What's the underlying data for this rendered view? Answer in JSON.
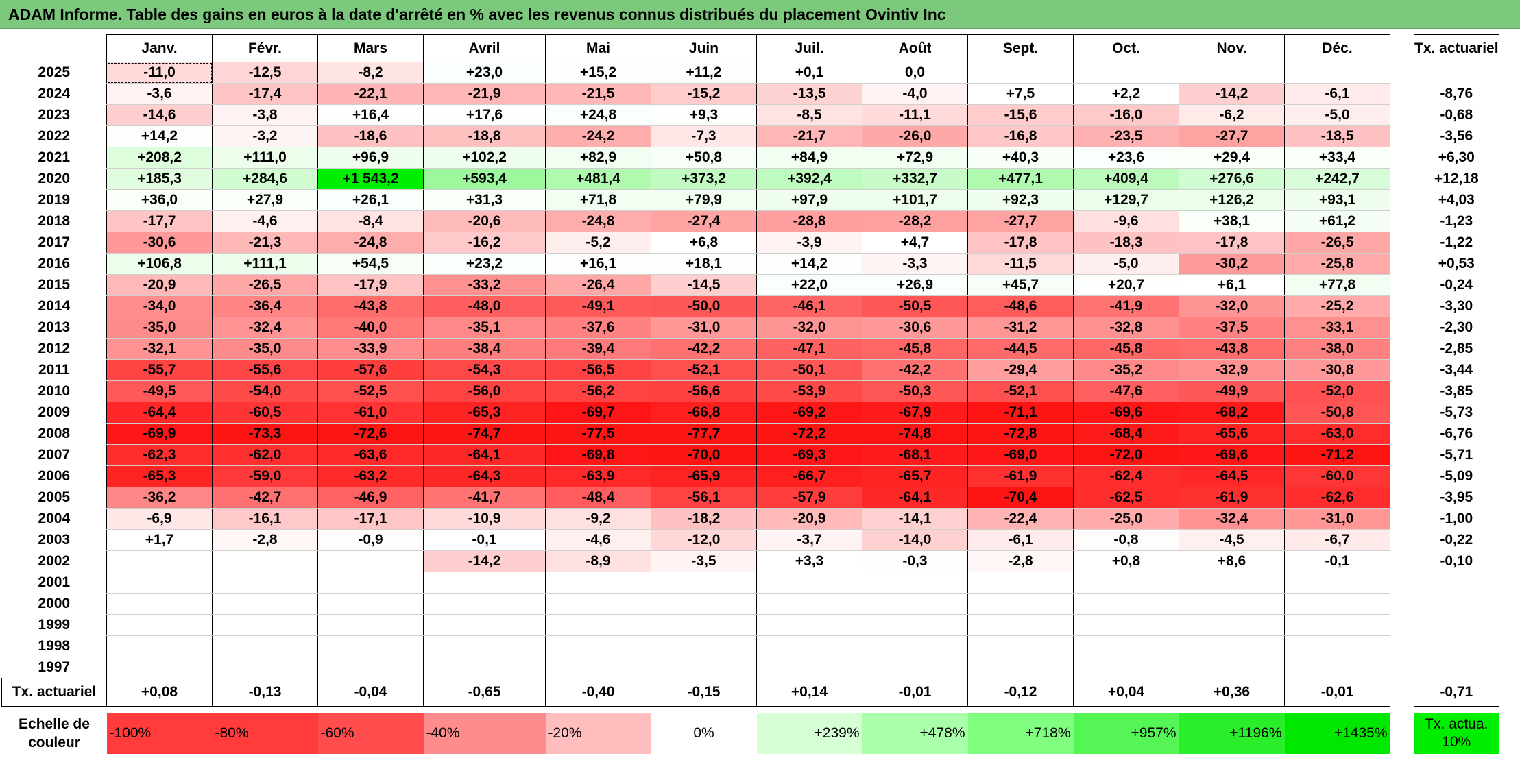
{
  "title": "ADAM Informe. Table des gains en euros à la date d'arrêté en % avec les revenus connus distribués du placement Ovintiv Inc",
  "months": [
    "Janv.",
    "Févr.",
    "Mars",
    "Avril",
    "Mai",
    "Juin",
    "Juil.",
    "Août",
    "Sept.",
    "Oct.",
    "Nov.",
    "Déc."
  ],
  "tx_header": "Tx. actuariel",
  "rows": [
    {
      "year": "2025",
      "values": [
        "-11,0",
        "-12,5",
        "-8,2",
        "+23,0",
        "+15,2",
        "+11,2",
        "+0,1",
        "0,0",
        "",
        "",
        "",
        ""
      ],
      "tx": ""
    },
    {
      "year": "2024",
      "values": [
        "-3,6",
        "-17,4",
        "-22,1",
        "-21,9",
        "-21,5",
        "-15,2",
        "-13,5",
        "-4,0",
        "+7,5",
        "+2,2",
        "-14,2",
        "-6,1"
      ],
      "tx": "-8,76"
    },
    {
      "year": "2023",
      "values": [
        "-14,6",
        "-3,8",
        "+16,4",
        "+17,6",
        "+24,8",
        "+9,3",
        "-8,5",
        "-11,1",
        "-15,6",
        "-16,0",
        "-6,2",
        "-5,0"
      ],
      "tx": "-0,68"
    },
    {
      "year": "2022",
      "values": [
        "+14,2",
        "-3,2",
        "-18,6",
        "-18,8",
        "-24,2",
        "-7,3",
        "-21,7",
        "-26,0",
        "-16,8",
        "-23,5",
        "-27,7",
        "-18,5"
      ],
      "tx": "-3,56"
    },
    {
      "year": "2021",
      "values": [
        "+208,2",
        "+111,0",
        "+96,9",
        "+102,2",
        "+82,9",
        "+50,8",
        "+84,9",
        "+72,9",
        "+40,3",
        "+23,6",
        "+29,4",
        "+33,4"
      ],
      "tx": "+6,30"
    },
    {
      "year": "2020",
      "values": [
        "+185,3",
        "+284,6",
        "+1 543,2",
        "+593,4",
        "+481,4",
        "+373,2",
        "+392,4",
        "+332,7",
        "+477,1",
        "+409,4",
        "+276,6",
        "+242,7"
      ],
      "tx": "+12,18"
    },
    {
      "year": "2019",
      "values": [
        "+36,0",
        "+27,9",
        "+26,1",
        "+31,3",
        "+71,8",
        "+79,9",
        "+97,9",
        "+101,7",
        "+92,3",
        "+129,7",
        "+126,2",
        "+93,1"
      ],
      "tx": "+4,03"
    },
    {
      "year": "2018",
      "values": [
        "-17,7",
        "-4,6",
        "-8,4",
        "-20,6",
        "-24,8",
        "-27,4",
        "-28,8",
        "-28,2",
        "-27,7",
        "-9,6",
        "+38,1",
        "+61,2"
      ],
      "tx": "-1,23"
    },
    {
      "year": "2017",
      "values": [
        "-30,6",
        "-21,3",
        "-24,8",
        "-16,2",
        "-5,2",
        "+6,8",
        "-3,9",
        "+4,7",
        "-17,8",
        "-18,3",
        "-17,8",
        "-26,5"
      ],
      "tx": "-1,22"
    },
    {
      "year": "2016",
      "values": [
        "+106,8",
        "+111,1",
        "+54,5",
        "+23,2",
        "+16,1",
        "+18,1",
        "+14,2",
        "-3,3",
        "-11,5",
        "-5,0",
        "-30,2",
        "-25,8"
      ],
      "tx": "+0,53"
    },
    {
      "year": "2015",
      "values": [
        "-20,9",
        "-26,5",
        "-17,9",
        "-33,2",
        "-26,4",
        "-14,5",
        "+22,0",
        "+26,9",
        "+45,7",
        "+20,7",
        "+6,1",
        "+77,8"
      ],
      "tx": "-0,24"
    },
    {
      "year": "2014",
      "values": [
        "-34,0",
        "-36,4",
        "-43,8",
        "-48,0",
        "-49,1",
        "-50,0",
        "-46,1",
        "-50,5",
        "-48,6",
        "-41,9",
        "-32,0",
        "-25,2"
      ],
      "tx": "-3,30"
    },
    {
      "year": "2013",
      "values": [
        "-35,0",
        "-32,4",
        "-40,0",
        "-35,1",
        "-37,6",
        "-31,0",
        "-32,0",
        "-30,6",
        "-31,2",
        "-32,8",
        "-37,5",
        "-33,1"
      ],
      "tx": "-2,30"
    },
    {
      "year": "2012",
      "values": [
        "-32,1",
        "-35,0",
        "-33,9",
        "-38,4",
        "-39,4",
        "-42,2",
        "-47,1",
        "-45,8",
        "-44,5",
        "-45,8",
        "-43,8",
        "-38,0"
      ],
      "tx": "-2,85"
    },
    {
      "year": "2011",
      "values": [
        "-55,7",
        "-55,6",
        "-57,6",
        "-54,3",
        "-56,5",
        "-52,1",
        "-50,1",
        "-42,2",
        "-29,4",
        "-35,2",
        "-32,9",
        "-30,8"
      ],
      "tx": "-3,44"
    },
    {
      "year": "2010",
      "values": [
        "-49,5",
        "-54,0",
        "-52,5",
        "-56,0",
        "-56,2",
        "-56,6",
        "-53,9",
        "-50,3",
        "-52,1",
        "-47,6",
        "-49,9",
        "-52,0"
      ],
      "tx": "-3,85"
    },
    {
      "year": "2009",
      "values": [
        "-64,4",
        "-60,5",
        "-61,0",
        "-65,3",
        "-69,7",
        "-66,8",
        "-69,2",
        "-67,9",
        "-71,1",
        "-69,6",
        "-68,2",
        "-50,8"
      ],
      "tx": "-5,73"
    },
    {
      "year": "2008",
      "values": [
        "-69,9",
        "-73,3",
        "-72,6",
        "-74,7",
        "-77,5",
        "-77,7",
        "-72,2",
        "-74,8",
        "-72,8",
        "-68,4",
        "-65,6",
        "-63,0"
      ],
      "tx": "-6,76"
    },
    {
      "year": "2007",
      "values": [
        "-62,3",
        "-62,0",
        "-63,6",
        "-64,1",
        "-69,8",
        "-70,0",
        "-69,3",
        "-68,1",
        "-69,0",
        "-72,0",
        "-69,6",
        "-71,2"
      ],
      "tx": "-5,71"
    },
    {
      "year": "2006",
      "values": [
        "-65,3",
        "-59,0",
        "-63,2",
        "-64,3",
        "-63,9",
        "-65,9",
        "-66,7",
        "-65,7",
        "-61,9",
        "-62,4",
        "-64,5",
        "-60,0"
      ],
      "tx": "-5,09"
    },
    {
      "year": "2005",
      "values": [
        "-36,2",
        "-42,7",
        "-46,9",
        "-41,7",
        "-48,4",
        "-56,1",
        "-57,9",
        "-64,1",
        "-70,4",
        "-62,5",
        "-61,9",
        "-62,6"
      ],
      "tx": "-3,95"
    },
    {
      "year": "2004",
      "values": [
        "-6,9",
        "-16,1",
        "-17,1",
        "-10,9",
        "-9,2",
        "-18,2",
        "-20,9",
        "-14,1",
        "-22,4",
        "-25,0",
        "-32,4",
        "-31,0"
      ],
      "tx": "-1,00"
    },
    {
      "year": "2003",
      "values": [
        "+1,7",
        "-2,8",
        "-0,9",
        "-0,1",
        "-4,6",
        "-12,0",
        "-3,7",
        "-14,0",
        "-6,1",
        "-0,8",
        "-4,5",
        "-6,7"
      ],
      "tx": "-0,22"
    },
    {
      "year": "2002",
      "values": [
        "",
        "",
        "",
        "-14,2",
        "-8,9",
        "-3,5",
        "+3,3",
        "-0,3",
        "-2,8",
        "+0,8",
        "+8,6",
        "-0,1"
      ],
      "tx": "-0,10"
    },
    {
      "year": "2001",
      "values": [
        "",
        "",
        "",
        "",
        "",
        "",
        "",
        "",
        "",
        "",
        "",
        ""
      ],
      "tx": ""
    },
    {
      "year": "2000",
      "values": [
        "",
        "",
        "",
        "",
        "",
        "",
        "",
        "",
        "",
        "",
        "",
        ""
      ],
      "tx": ""
    },
    {
      "year": "1999",
      "values": [
        "",
        "",
        "",
        "",
        "",
        "",
        "",
        "",
        "",
        "",
        "",
        ""
      ],
      "tx": ""
    },
    {
      "year": "1998",
      "values": [
        "",
        "",
        "",
        "",
        "",
        "",
        "",
        "",
        "",
        "",
        "",
        ""
      ],
      "tx": ""
    },
    {
      "year": "1997",
      "values": [
        "",
        "",
        "",
        "",
        "",
        "",
        "",
        "",
        "",
        "",
        "",
        ""
      ],
      "tx": ""
    }
  ],
  "annual": {
    "label": "Tx. actuariel",
    "values": [
      "+0,08",
      "-0,13",
      "-0,04",
      "-0,65",
      "-0,40",
      "-0,15",
      "+0,14",
      "-0,01",
      "-0,12",
      "+0,04",
      "+0,36",
      "-0,01"
    ],
    "tx": "-0,71"
  },
  "scale": {
    "label": "Echelle de couleur",
    "stops": [
      {
        "label": "-100%",
        "color": "#ff3b3b"
      },
      {
        "label": "-80%",
        "color": "#ff3b3b"
      },
      {
        "label": "-60%",
        "color": "#ff4d4d"
      },
      {
        "label": "-40%",
        "color": "#ff8c8c"
      },
      {
        "label": "-20%",
        "color": "#ffbdbd"
      },
      {
        "label": "0%",
        "color": "#ffffff"
      },
      {
        "label": "+239%",
        "color": "#d6ffd6"
      },
      {
        "label": "+478%",
        "color": "#aaffaa"
      },
      {
        "label": "+718%",
        "color": "#80ff80"
      },
      {
        "label": "+957%",
        "color": "#55f555"
      },
      {
        "label": "+1196%",
        "color": "#2aee2a"
      },
      {
        "label": "+1435%",
        "color": "#00e800"
      }
    ],
    "tx_label": "Tx. actua. 10%",
    "tx_color": "#00ee00"
  },
  "colors": {
    "title_bg": "#7cc87c",
    "negative_max": "#ff0000",
    "positive_max": "#00ee00"
  }
}
